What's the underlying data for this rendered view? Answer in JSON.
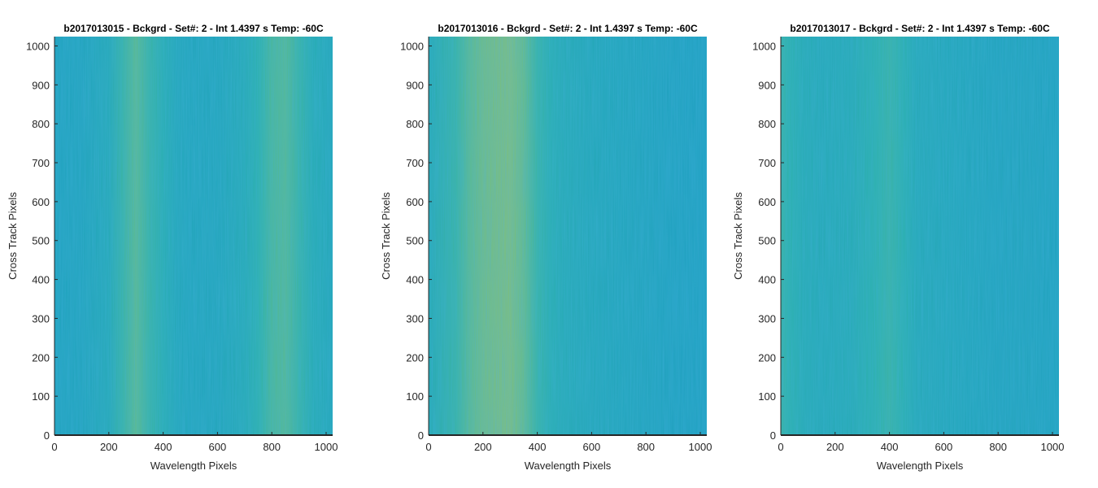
{
  "figure": {
    "background": "#ffffff"
  },
  "colors": {
    "blue": "#0d8fd6",
    "teal": "#2cb1a8",
    "yellow_green": "#b7c94a",
    "axis": "#262626",
    "text": "#262626"
  },
  "chart_data": [
    {
      "type": "heatmap",
      "title": "b2017013015 - Bckgrd - Set#: 2 - Int 1.4397 s Temp: -60C",
      "xlabel": "Wavelength Pixels",
      "ylabel": "Cross Track Pixels",
      "xlim": [
        0,
        1024
      ],
      "ylim": [
        0,
        1024
      ],
      "xticks": [
        0,
        200,
        400,
        600,
        800,
        1000
      ],
      "yticks": [
        0,
        100,
        200,
        300,
        400,
        500,
        600,
        700,
        800,
        900,
        1000
      ],
      "grid": false,
      "brightness_profile": {
        "x": [
          0,
          100,
          200,
          250,
          300,
          350,
          400,
          450,
          500,
          600,
          700,
          750,
          800,
          850,
          900,
          950,
          1024
        ],
        "level": [
          0.28,
          0.3,
          0.38,
          0.55,
          0.68,
          0.55,
          0.45,
          0.35,
          0.32,
          0.33,
          0.4,
          0.5,
          0.62,
          0.66,
          0.55,
          0.42,
          0.35
        ]
      }
    },
    {
      "type": "heatmap",
      "title": "b2017013016 - Bckgrd - Set#: 2 - Int 1.4397 s Temp: -60C",
      "xlabel": "Wavelength Pixels",
      "ylabel": "Cross Track Pixels",
      "xlim": [
        0,
        1024
      ],
      "ylim": [
        0,
        1024
      ],
      "xticks": [
        0,
        200,
        400,
        600,
        800,
        1000
      ],
      "yticks": [
        0,
        100,
        200,
        300,
        400,
        500,
        600,
        700,
        800,
        900,
        1000
      ],
      "grid": false,
      "brightness_profile": {
        "x": [
          0,
          100,
          150,
          200,
          250,
          300,
          350,
          400,
          450,
          500,
          600,
          700,
          800,
          900,
          1024
        ],
        "level": [
          0.4,
          0.55,
          0.68,
          0.75,
          0.78,
          0.8,
          0.72,
          0.55,
          0.45,
          0.4,
          0.36,
          0.33,
          0.3,
          0.27,
          0.25
        ]
      }
    },
    {
      "type": "heatmap",
      "title": "b2017013017 - Bckgrd - Set#: 2 - Int 1.4397 s Temp: -60C",
      "xlabel": "Wavelength Pixels",
      "ylabel": "Cross Track Pixels",
      "xlim": [
        0,
        1024
      ],
      "ylim": [
        0,
        1024
      ],
      "xticks": [
        0,
        200,
        400,
        600,
        800,
        1000
      ],
      "yticks": [
        0,
        100,
        200,
        300,
        400,
        500,
        600,
        700,
        800,
        900,
        1000
      ],
      "grid": false,
      "brightness_profile": {
        "x": [
          0,
          30,
          80,
          150,
          250,
          350,
          400,
          450,
          500,
          600,
          700,
          800,
          900,
          1024
        ],
        "level": [
          0.55,
          0.5,
          0.42,
          0.38,
          0.4,
          0.5,
          0.55,
          0.48,
          0.38,
          0.35,
          0.33,
          0.3,
          0.3,
          0.28
        ]
      }
    }
  ]
}
